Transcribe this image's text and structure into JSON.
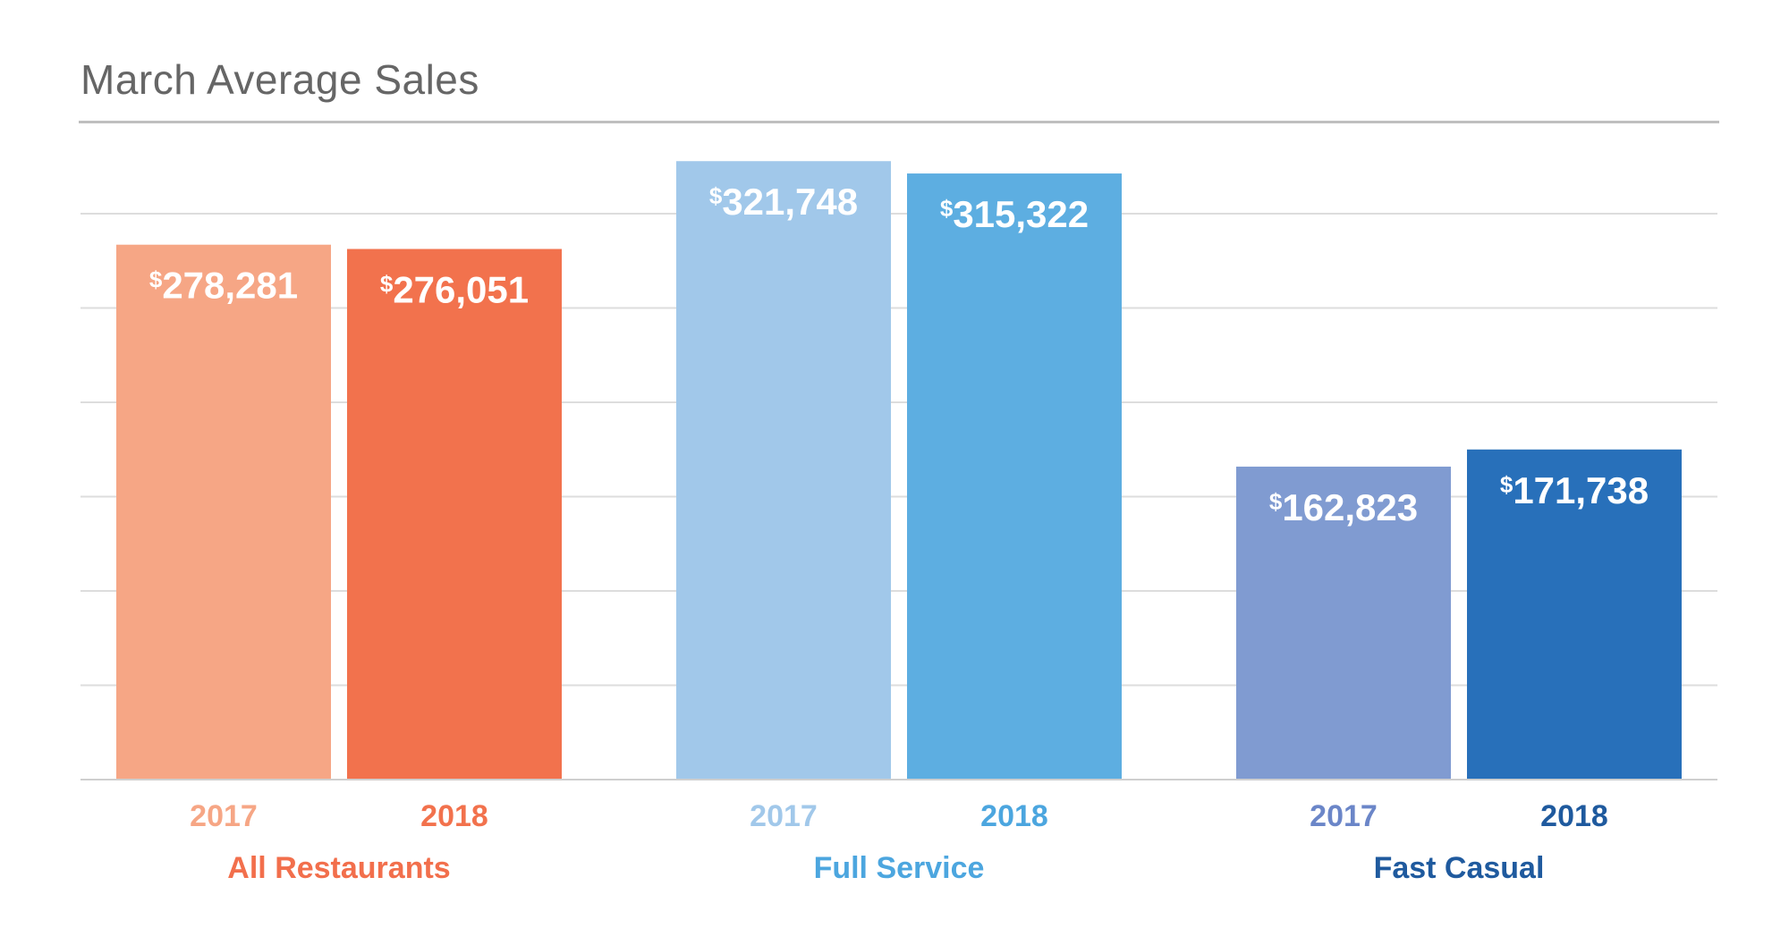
{
  "chart_data": {
    "type": "bar",
    "title": "March Average Sales",
    "ylim": [
      0,
      360000
    ],
    "grid": true,
    "currency_symbol": "$",
    "groups": [
      {
        "name": "All Restaurants",
        "color": "#F26F4C",
        "bars": [
          {
            "year": "2017",
            "value": 278281,
            "label": "278,281",
            "color": "#F6A685"
          },
          {
            "year": "2018",
            "value": 276051,
            "label": "276,051",
            "color": "#F2724D"
          }
        ]
      },
      {
        "name": "Full Service",
        "color": "#4CA6DF",
        "bars": [
          {
            "year": "2017",
            "value": 321748,
            "label": "321,748",
            "color": "#A1C8EA"
          },
          {
            "year": "2018",
            "value": 315322,
            "label": "315,322",
            "color": "#5DAEE1"
          }
        ]
      },
      {
        "name": "Fast Casual",
        "color": "#1F5A9E",
        "bars": [
          {
            "year": "2017",
            "value": 162823,
            "label": "162,823",
            "color": "#809BD1"
          },
          {
            "year": "2018",
            "value": 171738,
            "label": "171,738",
            "color": "#2870BA"
          }
        ]
      }
    ],
    "year_label_colors": {
      "0": [
        "#F6A685",
        "#F2724D"
      ],
      "1": [
        "#A1C8EA",
        "#4CA6DF"
      ],
      "2": [
        "#6B86C8",
        "#1F5A9E"
      ]
    },
    "gridline_color": "#DDDDDD",
    "axis_color": "#CFCFCF",
    "title_rule_color": "#BFBFBF"
  }
}
